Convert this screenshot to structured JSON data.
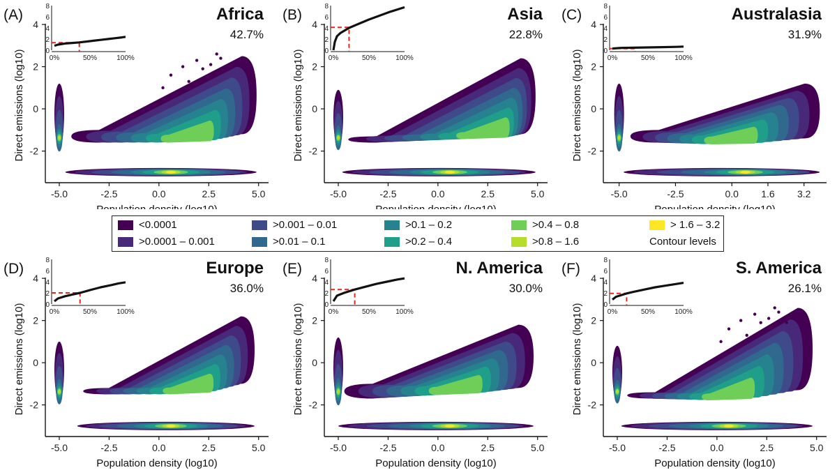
{
  "figure": {
    "xlabel": "Population density (log10)",
    "ylabel": "Direct emissions (log10)",
    "inset_y_ticks": [
      "8",
      "6",
      "4",
      "2",
      "0"
    ],
    "inset_x_ticks": [
      "0%",
      "50%",
      "100%"
    ],
    "inset_x_suffix": "%",
    "main_y_ticks": [
      "4",
      "2",
      "0",
      "-2"
    ]
  },
  "legend": {
    "title": "Contour levels",
    "levels": [
      {
        "label": "<0.0001",
        "color": "#440154"
      },
      {
        "label": ">0.0001 – 0.001",
        "color": "#482878"
      },
      {
        "label": ">0.001 – 0.01",
        "color": "#3e4a89"
      },
      {
        "label": ">0.01 – 0.1",
        "color": "#31688e"
      },
      {
        "label": ">0.1 – 0.2",
        "color": "#26828e"
      },
      {
        "label": ">0.2 – 0.4",
        "color": "#1f9e89"
      },
      {
        "label": ">0.4 – 0.8",
        "color": "#6ece58"
      },
      {
        "label": ">0.8 – 1.6",
        "color": "#b5de2b"
      },
      {
        "label": "> 1.6 – 3.2",
        "color": "#fde725"
      }
    ]
  },
  "chart_data": [
    {
      "type": "contour-density",
      "panel": "(A)",
      "title": "Africa",
      "percent": "42.7%",
      "xticks": [
        "-5.0",
        "-2.5",
        "0.0",
        "2.5",
        "5.0"
      ],
      "xtick_values": [
        -5,
        -2.5,
        0,
        2.5,
        5
      ],
      "yticks": [
        4,
        2,
        0,
        -2
      ],
      "xlim": [
        -5.7,
        5.5
      ],
      "ylim": [
        -3.5,
        4.5
      ],
      "cloud": {
        "x_start": -4.4,
        "x_end": 4.9,
        "y_bottom_left": -1.6,
        "y_bottom_right": -1.2,
        "y_top_left": -1.0,
        "y_top_right": 2.5,
        "peak": [
          1.3,
          -1.4
        ],
        "scatter": true
      },
      "inset": {
        "x": [
          0,
          5,
          15,
          25,
          35,
          45,
          55,
          65,
          75,
          85,
          95,
          100
        ],
        "y": [
          0.8,
          1.0,
          1.2,
          1.3,
          1.4,
          1.55,
          1.7,
          1.85,
          2.0,
          2.15,
          2.3,
          2.4
        ],
        "cutoff_x": 35,
        "cutoff_y": 1.35
      }
    },
    {
      "type": "contour-density",
      "panel": "(B)",
      "title": "Asia",
      "percent": "22.8%",
      "xticks": [
        "-5.0",
        "-2.5",
        "0.0",
        "2.5",
        "5.0"
      ],
      "xtick_values": [
        -5,
        -2.5,
        0,
        2.5,
        5
      ],
      "yticks": [
        4,
        2,
        0,
        -2
      ],
      "xlim": [
        -5.7,
        5.5
      ],
      "ylim": [
        -3.5,
        4.5
      ],
      "cloud": {
        "x_start": -4.5,
        "x_end": 4.9,
        "y_bottom_left": -1.6,
        "y_bottom_right": -1.2,
        "y_top_left": -1.3,
        "y_top_right": 2.4,
        "peak": [
          2.3,
          -1.2
        ],
        "scatter": false
      },
      "inset": {
        "x": [
          0,
          2,
          5,
          10,
          22,
          35,
          50,
          65,
          80,
          90,
          100
        ],
        "y": [
          0,
          1.5,
          2.5,
          3.1,
          4.0,
          4.7,
          5.5,
          6.2,
          6.9,
          7.3,
          7.7
        ],
        "cutoff_x": 22,
        "cutoff_y": 4.1
      }
    },
    {
      "type": "contour-density",
      "panel": "(C)",
      "title": "Australasia",
      "percent": "31.9%",
      "xticks": [
        "-5.0",
        "-2.5",
        "0.0",
        "1.6",
        "3.2"
      ],
      "xtick_values": [
        -5,
        -2.5,
        0,
        1.6,
        3.2
      ],
      "yticks": [
        4,
        2,
        0,
        -2
      ],
      "xlim": [
        -5.7,
        4.2
      ],
      "ylim": [
        -3.5,
        4.5
      ],
      "cloud": {
        "x_start": -4.5,
        "x_end": 3.9,
        "y_bottom_left": -1.6,
        "y_bottom_right": -1.4,
        "y_top_left": -1.0,
        "y_top_right": 1.2,
        "peak": [
          -0.3,
          -1.5
        ],
        "scatter": false
      },
      "inset": {
        "x": [
          0,
          10,
          30,
          50,
          70,
          90,
          100
        ],
        "y": [
          0.3,
          0.4,
          0.45,
          0.5,
          0.55,
          0.6,
          0.65
        ],
        "cutoff_x": 32,
        "cutoff_y": 0.3
      }
    },
    {
      "type": "contour-density",
      "panel": "(D)",
      "title": "Europe",
      "percent": "36.0%",
      "xticks": [
        "-5.0",
        "-2.5",
        "0.0",
        "2.5",
        "5.0"
      ],
      "xtick_values": [
        -5,
        -2.5,
        0,
        2.5,
        5
      ],
      "yticks": [
        4,
        2,
        0,
        -2
      ],
      "xlim": [
        -5.7,
        5.5
      ],
      "ylim": [
        -3.5,
        4.5
      ],
      "cloud": {
        "x_start": -3.8,
        "x_end": 4.8,
        "y_bottom_left": -1.5,
        "y_bottom_right": -1.0,
        "y_top_left": -1.2,
        "y_top_right": 2.2,
        "peak": [
          1.3,
          -1.3
        ],
        "scatter": false
      },
      "inset": {
        "x": [
          0,
          5,
          15,
          25,
          36,
          50,
          65,
          80,
          90,
          100
        ],
        "y": [
          0.5,
          1.0,
          1.4,
          1.7,
          2.0,
          2.5,
          3.0,
          3.4,
          3.7,
          3.9
        ],
        "cutoff_x": 36,
        "cutoff_y": 2.0
      }
    },
    {
      "type": "contour-density",
      "panel": "(E)",
      "title": "N. America",
      "percent": "30.0%",
      "xticks": [
        "-5.0",
        "-2.5",
        "0.0",
        "2.5",
        "5.0"
      ],
      "xtick_values": [
        -5,
        -2.5,
        0,
        2.5,
        5
      ],
      "yticks": [
        4,
        2,
        0,
        -2
      ],
      "xlim": [
        -5.7,
        5.5
      ],
      "ylim": [
        -3.5,
        4.5
      ],
      "cloud": {
        "x_start": -4.7,
        "x_end": 4.8,
        "y_bottom_left": -1.7,
        "y_bottom_right": -1.2,
        "y_top_left": -1.0,
        "y_top_right": 1.8,
        "peak": [
          0.7,
          -1.3
        ],
        "scatter": false
      },
      "inset": {
        "x": [
          0,
          5,
          15,
          30,
          45,
          60,
          75,
          90,
          100
        ],
        "y": [
          0.5,
          1.5,
          2.0,
          2.6,
          3.1,
          3.6,
          4.0,
          4.4,
          4.6
        ],
        "cutoff_x": 30,
        "cutoff_y": 2.6
      }
    },
    {
      "type": "contour-density",
      "panel": "(F)",
      "title": "S. America",
      "percent": "26.1%",
      "xticks": [
        "-5.0",
        "-2.5",
        "0.0",
        "2.5",
        "5.0"
      ],
      "xtick_values": [
        -5,
        -2.5,
        0,
        2.5,
        5
      ],
      "yticks": [
        4,
        2,
        0,
        -2
      ],
      "xlim": [
        -5.7,
        5.5
      ],
      "ylim": [
        -3.5,
        4.5
      ],
      "cloud": {
        "x_start": -4.5,
        "x_end": 4.8,
        "y_bottom_left": -1.7,
        "y_bottom_right": -1.3,
        "y_top_left": -1.4,
        "y_top_right": 2.6,
        "peak": [
          0.3,
          -1.6
        ],
        "scatter": true
      },
      "inset": {
        "x": [
          0,
          5,
          10,
          20,
          30,
          45,
          60,
          75,
          90,
          100
        ],
        "y": [
          0.8,
          1.3,
          1.5,
          1.9,
          2.2,
          2.6,
          3.0,
          3.3,
          3.6,
          3.8
        ],
        "cutoff_x": 20,
        "cutoff_y": 1.9
      }
    }
  ]
}
